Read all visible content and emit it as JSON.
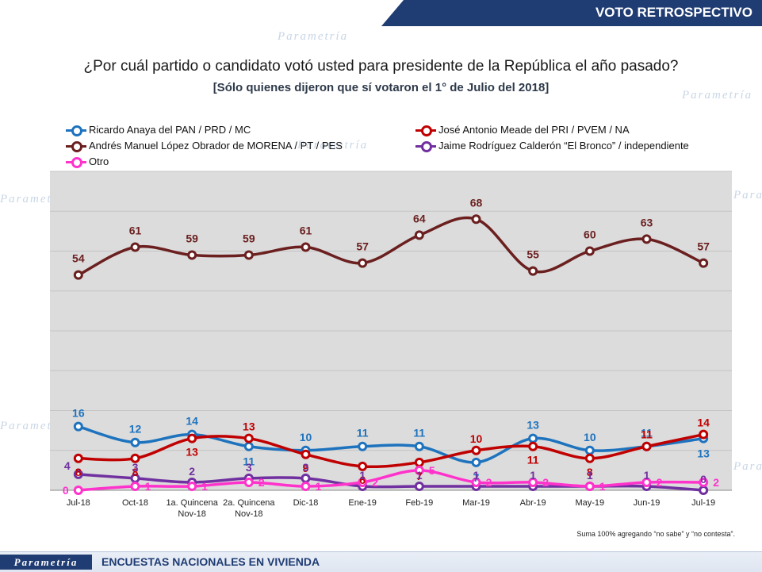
{
  "header": {
    "title": "VOTO RETROSPECTIVO"
  },
  "question": "¿Por cuál partido o candidato votó usted para presidente de la República el año pasado?",
  "subtitle": "[Sólo quienes dijeron que sí votaron el 1° de Julio del 2018]",
  "footnote": "Suma 100% agregando “no sabe” y “no contesta”.",
  "footer": {
    "logo": "Parametría",
    "text": "ENCUESTAS NACIONALES EN VIVIENDA"
  },
  "colors": {
    "plot_background": "#dcdcdc",
    "header": "#1f3c73"
  },
  "chart_data": {
    "type": "line",
    "ylim": [
      0,
      80
    ],
    "grid": true,
    "legend_position": "top",
    "categories": [
      "Jul-18",
      "Oct-18",
      "1a. Quincena Nov-18",
      "2a. Quincena Nov-18",
      "Dic-18",
      "Ene-19",
      "Feb-19",
      "Mar-19",
      "Abr-19",
      "May-19",
      "Jun-19",
      "Jul-19"
    ],
    "series": [
      {
        "name": "Ricardo Anaya del PAN / PRD / MC",
        "color": "#1e73be",
        "values": [
          16,
          12,
          14,
          11,
          10,
          11,
          11,
          7,
          13,
          10,
          11,
          13
        ]
      },
      {
        "name": "José Antonio Meade del PRI / PVEM / NA",
        "color": "#c00000",
        "values": [
          8,
          8,
          13,
          13,
          9,
          6,
          7,
          10,
          11,
          8,
          11,
          14
        ]
      },
      {
        "name": "Andrés Manuel López Obrador de MORENA / PT / PES",
        "color": "#6b1f1f",
        "values": [
          54,
          61,
          59,
          59,
          61,
          57,
          64,
          68,
          55,
          60,
          63,
          57
        ]
      },
      {
        "name": "Jaime Rodríguez Calderón  “El Bronco” / independiente",
        "color": "#7030a0",
        "values": [
          4,
          3,
          2,
          3,
          3,
          1,
          1,
          1,
          1,
          1,
          1,
          0
        ]
      },
      {
        "name": "Otro",
        "color": "#ff33cc",
        "values": [
          0,
          1,
          1,
          2,
          1,
          2,
          5,
          2,
          2,
          1,
          2,
          2
        ]
      }
    ]
  }
}
